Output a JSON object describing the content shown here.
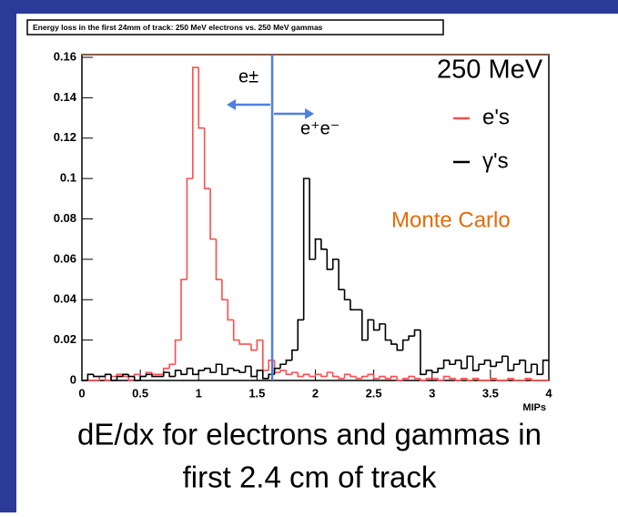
{
  "chart_data": {
    "type": "histogram",
    "title": "Energy loss in the first 24mm of track: 250 MeV electrons vs. 250 MeV gammas",
    "x_label": "MIPs",
    "caption": [
      "dE/dx for electrons and gammas in",
      "first 2.4 cm of track"
    ],
    "legend_title": "250 MeV",
    "annotation": "Monte Carlo",
    "cut_labels": [
      "e±",
      "e⁺e⁻"
    ],
    "cut_line": {
      "x": 1.63,
      "color": "#4f7fe0"
    },
    "xlim": [
      0,
      4
    ],
    "ylim": [
      0,
      0.16
    ],
    "xticks": [
      0,
      0.5,
      1,
      1.5,
      2,
      2.5,
      3,
      3.5,
      4
    ],
    "yticks": [
      0,
      0.02,
      0.04,
      0.06,
      0.08,
      0.1,
      0.12,
      0.14,
      0.16
    ],
    "bins": [
      0,
      0.05,
      0.1,
      0.15,
      0.2,
      0.25,
      0.3,
      0.35,
      0.4,
      0.45,
      0.5,
      0.55,
      0.6,
      0.65,
      0.7,
      0.75,
      0.8,
      0.85,
      0.9,
      0.95,
      1,
      1.05,
      1.1,
      1.15,
      1.2,
      1.25,
      1.3,
      1.35,
      1.4,
      1.45,
      1.5,
      1.55,
      1.6,
      1.65,
      1.7,
      1.75,
      1.8,
      1.85,
      1.9,
      1.95,
      2,
      2.05,
      2.1,
      2.15,
      2.2,
      2.25,
      2.3,
      2.35,
      2.4,
      2.45,
      2.5,
      2.55,
      2.6,
      2.65,
      2.7,
      2.75,
      2.8,
      2.85,
      2.9,
      2.95,
      3,
      3.05,
      3.1,
      3.15,
      3.2,
      3.25,
      3.3,
      3.35,
      3.4,
      3.45,
      3.5,
      3.55,
      3.6,
      3.65,
      3.7,
      3.75,
      3.8,
      3.85,
      3.9,
      3.95,
      4
    ],
    "series": [
      {
        "name": "e's",
        "color": "#ff4d4d",
        "values": [
          0,
          0,
          0,
          0.002,
          0,
          0.002,
          0.003,
          0.002,
          0,
          0.003,
          0.002,
          0.004,
          0.003,
          0.003,
          0.006,
          0.008,
          0.02,
          0.05,
          0.1,
          0.155,
          0.125,
          0.095,
          0.07,
          0.05,
          0.04,
          0.03,
          0.02,
          0.018,
          0.018,
          0.015,
          0.02,
          0.005,
          0.01,
          0.004,
          0.005,
          0.003,
          0.004,
          0.002,
          0.003,
          0.002,
          0.003,
          0.002,
          0.004,
          0.002,
          0.001,
          0.003,
          0.002,
          0.001,
          0.002,
          0.003,
          0.001,
          0.002,
          0.001,
          0.002,
          0,
          0.001,
          0.002,
          0.001,
          0,
          0.001,
          0.001,
          0,
          0.002,
          0.001,
          0,
          0.001,
          0,
          0.001,
          0,
          0,
          0.001,
          0,
          0,
          0.001,
          0,
          0,
          0.001,
          0,
          0,
          0
        ]
      },
      {
        "name": "γ's",
        "color": "#000000",
        "values": [
          0,
          0.003,
          0.002,
          0.002,
          0.003,
          0,
          0.002,
          0.003,
          0.002,
          0,
          0.002,
          0.003,
          0.002,
          0.002,
          0.004,
          0.002,
          0.005,
          0.003,
          0.006,
          0.003,
          0.005,
          0.006,
          0.004,
          0.008,
          0.003,
          0.006,
          0.005,
          0.004,
          0.007,
          0.002,
          0.005,
          0.001,
          0.003,
          0.006,
          0.008,
          0.01,
          0.015,
          0.03,
          0.1,
          0.06,
          0.07,
          0.065,
          0.055,
          0.06,
          0.045,
          0.04,
          0.035,
          0.035,
          0.02,
          0.03,
          0.025,
          0.028,
          0.02,
          0.018,
          0.015,
          0.02,
          0.022,
          0.025,
          0.003,
          0.005,
          0.004,
          0.006,
          0.01,
          0.008,
          0.01,
          0.006,
          0.012,
          0.005,
          0.008,
          0.01,
          0.007,
          0.009,
          0.012,
          0.005,
          0.008,
          0.01,
          0.004,
          0.008,
          0.003,
          0.01
        ]
      }
    ]
  }
}
